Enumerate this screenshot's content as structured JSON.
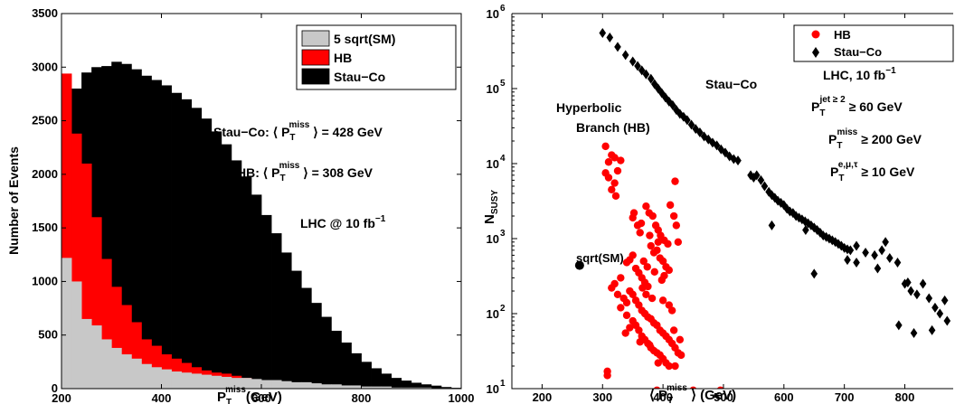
{
  "chart_data": [
    {
      "type": "bar",
      "xlim": [
        200,
        1000
      ],
      "ylim": [
        0,
        3500
      ],
      "xticks": [
        200,
        400,
        600,
        800,
        1000
      ],
      "yticks": [
        0,
        500,
        1000,
        1500,
        2000,
        2500,
        3000,
        3500
      ],
      "xlabel": {
        "main": "P",
        "sub": "T",
        "sup": "miss",
        "rest": "(GeV)"
      },
      "ylabel": "Number of Events",
      "legend": {
        "placement": "top-right",
        "entries": [
          "5 sqrt(SM)",
          "HB",
          "Stau−Co"
        ]
      },
      "annotations": {
        "stau_mean": {
          "pre": "Stau−Co: ⟨ P",
          "sub": "T",
          "sup": "miss",
          "post": " ⟩ = 428 GeV"
        },
        "hb_mean": {
          "pre": "HB: ⟨ P",
          "sub": "T",
          "sup": "miss",
          "post": " ⟩ = 308 GeV"
        },
        "lhc": {
          "pre": "LHC @ 10 fb",
          "sup": "−1"
        }
      },
      "colors": {
        "sm": "#c8c8c8",
        "hb": "#ff0000",
        "stau": "#000000"
      },
      "bin_width": 20,
      "bin_starts": [
        200,
        220,
        240,
        260,
        280,
        300,
        320,
        340,
        360,
        380,
        400,
        420,
        440,
        460,
        480,
        500,
        520,
        540,
        560,
        580,
        600,
        620,
        640,
        660,
        680,
        700,
        720,
        740,
        760,
        780,
        800,
        820,
        840,
        860,
        880,
        900,
        920,
        940,
        960,
        980
      ],
      "series": [
        {
          "name": "Stau−Co",
          "values": [
            2500,
            2800,
            2950,
            3000,
            3010,
            3050,
            3030,
            2980,
            2920,
            2880,
            2830,
            2760,
            2700,
            2620,
            2520,
            2400,
            2280,
            2130,
            1980,
            1810,
            1620,
            1450,
            1270,
            1100,
            940,
            800,
            670,
            540,
            430,
            330,
            250,
            190,
            140,
            100,
            75,
            55,
            40,
            28,
            15,
            8
          ]
        },
        {
          "name": "HB",
          "values": [
            2940,
            2380,
            2100,
            1600,
            1210,
            950,
            780,
            620,
            460,
            400,
            320,
            280,
            240,
            200,
            170,
            150,
            140,
            120,
            100,
            80,
            70,
            60,
            55,
            50,
            45,
            40,
            30,
            25,
            20,
            15,
            10,
            10,
            8,
            6,
            5,
            4,
            3,
            2,
            2,
            1
          ]
        },
        {
          "name": "5 sqrt(SM)",
          "values": [
            1220,
            1000,
            650,
            590,
            460,
            380,
            320,
            280,
            230,
            200,
            180,
            160,
            150,
            140,
            130,
            120,
            110,
            100,
            100,
            90,
            80,
            80,
            70,
            60,
            60,
            50,
            40,
            40,
            30,
            30,
            20,
            20,
            20,
            10,
            10,
            10,
            10,
            5,
            5,
            5
          ]
        }
      ]
    },
    {
      "type": "scatter",
      "xscale": "linear",
      "yscale": "log",
      "xlim": [
        150,
        880
      ],
      "ylim": [
        10,
        1000000
      ],
      "xticks": [
        200,
        300,
        400,
        500,
        600,
        700,
        800
      ],
      "yticks": [
        {
          "value": 10,
          "base": "10",
          "exp": "1"
        },
        {
          "value": 100,
          "base": "10",
          "exp": "2"
        },
        {
          "value": 1000,
          "base": "10",
          "exp": "3"
        },
        {
          "value": 10000,
          "base": "10",
          "exp": "4"
        },
        {
          "value": 100000,
          "base": "10",
          "exp": "5"
        },
        {
          "value": 1000000,
          "base": "10",
          "exp": "6"
        }
      ],
      "xlabel": {
        "pre": "⟨ P",
        "sub": "T",
        "sup": "miss",
        "post": " ⟩  (GeV)"
      },
      "ylabel": {
        "main": "N",
        "sub": "SUSY"
      },
      "legend": {
        "placement": "top-right",
        "entries": [
          "HB",
          "Stau−Co"
        ]
      },
      "annotations": {
        "stau_label": "Stau−Co",
        "hyperbolic": "Hyperbolic",
        "branch": "Branch  (HB)",
        "sm_label": "sqrt(SM)",
        "lhc": {
          "pre": "LHC, 10 fb",
          "sup": "−1"
        },
        "cut1": {
          "main": "P",
          "sub": "T",
          "sup": "jet ≥ 2",
          "post": " ≥  60 GeV"
        },
        "cut2": {
          "main": "P",
          "sub": "T",
          "sup": "miss",
          "post": " ≥  200 GeV"
        },
        "cut3": {
          "main": "P",
          "sub": "T",
          "sup": "e,μ,τ",
          "post": " ≥  10 GeV"
        }
      },
      "colors": {
        "hb": "#ff0000",
        "stau": "#000000",
        "sm": "#000000"
      },
      "sm_point": [
        262,
        440
      ],
      "hb_points": [
        [
          305,
          17000
        ],
        [
          315,
          13000
        ],
        [
          310,
          10500
        ],
        [
          320,
          12000
        ],
        [
          330,
          11000
        ],
        [
          325,
          8000
        ],
        [
          305,
          7500
        ],
        [
          310,
          6500
        ],
        [
          320,
          5500
        ],
        [
          315,
          4500
        ],
        [
          322,
          3700
        ],
        [
          420,
          5800
        ],
        [
          350,
          1900
        ],
        [
          358,
          1500
        ],
        [
          362,
          1200
        ],
        [
          372,
          2700
        ],
        [
          377,
          2200
        ],
        [
          383,
          2000
        ],
        [
          388,
          1500
        ],
        [
          392,
          1300
        ],
        [
          396,
          1100
        ],
        [
          402,
          950
        ],
        [
          408,
          850
        ],
        [
          412,
          2800
        ],
        [
          418,
          2000
        ],
        [
          422,
          1500
        ],
        [
          425,
          900
        ],
        [
          380,
          800
        ],
        [
          385,
          650
        ],
        [
          390,
          700
        ],
        [
          395,
          550
        ],
        [
          400,
          500
        ],
        [
          405,
          420
        ],
        [
          410,
          380
        ],
        [
          350,
          600
        ],
        [
          345,
          520
        ],
        [
          340,
          480
        ],
        [
          355,
          400
        ],
        [
          360,
          350
        ],
        [
          365,
          300
        ],
        [
          370,
          260
        ],
        [
          375,
          230
        ],
        [
          330,
          300
        ],
        [
          320,
          250
        ],
        [
          315,
          220
        ],
        [
          325,
          180
        ],
        [
          335,
          160
        ],
        [
          340,
          140
        ],
        [
          345,
          200
        ],
        [
          350,
          180
        ],
        [
          355,
          150
        ],
        [
          360,
          130
        ],
        [
          365,
          110
        ],
        [
          370,
          100
        ],
        [
          375,
          90
        ],
        [
          380,
          85
        ],
        [
          385,
          75
        ],
        [
          390,
          70
        ],
        [
          395,
          60
        ],
        [
          400,
          55
        ],
        [
          405,
          50
        ],
        [
          410,
          45
        ],
        [
          415,
          40
        ],
        [
          420,
          35
        ],
        [
          425,
          30
        ],
        [
          430,
          28
        ],
        [
          360,
          60
        ],
        [
          365,
          50
        ],
        [
          370,
          45
        ],
        [
          375,
          40
        ],
        [
          380,
          35
        ],
        [
          385,
          32
        ],
        [
          390,
          30
        ],
        [
          395,
          28
        ],
        [
          400,
          25
        ],
        [
          405,
          22
        ],
        [
          410,
          20
        ],
        [
          420,
          20
        ],
        [
          308,
          17
        ],
        [
          308,
          15
        ],
        [
          390,
          9.5
        ],
        [
          450,
          9.5
        ],
        [
          495,
          9.5
        ],
        [
          330,
          120
        ],
        [
          340,
          95
        ],
        [
          350,
          80
        ],
        [
          345,
          65
        ],
        [
          338,
          55
        ],
        [
          355,
          70
        ],
        [
          362,
          42
        ],
        [
          378,
          38
        ],
        [
          392,
          22
        ],
        [
          418,
          60
        ],
        [
          428,
          45
        ],
        [
          400,
          150
        ],
        [
          410,
          130
        ],
        [
          415,
          110
        ],
        [
          382,
          160
        ],
        [
          372,
          180
        ],
        [
          366,
          220
        ],
        [
          398,
          280
        ],
        [
          402,
          320
        ],
        [
          386,
          360
        ],
        [
          374,
          420
        ],
        [
          368,
          500
        ],
        [
          392,
          900
        ],
        [
          378,
          1100
        ],
        [
          364,
          1600
        ],
        [
          352,
          2200
        ]
      ],
      "stau_points": [
        [
          300,
          550000
        ],
        [
          312,
          480000
        ],
        [
          325,
          360000
        ],
        [
          338,
          280000
        ],
        [
          350,
          230000
        ],
        [
          358,
          200000
        ],
        [
          365,
          175000
        ],
        [
          372,
          155000
        ],
        [
          380,
          135000
        ],
        [
          386,
          115000
        ],
        [
          392,
          100000
        ],
        [
          398,
          87000
        ],
        [
          404,
          76000
        ],
        [
          410,
          67000
        ],
        [
          416,
          60000
        ],
        [
          422,
          52000
        ],
        [
          428,
          46000
        ],
        [
          434,
          42000
        ],
        [
          440,
          38000
        ],
        [
          447,
          33000
        ],
        [
          454,
          29000
        ],
        [
          461,
          26000
        ],
        [
          468,
          23000
        ],
        [
          475,
          21000
        ],
        [
          482,
          19000
        ],
        [
          489,
          17500
        ],
        [
          496,
          15500
        ],
        [
          503,
          14000
        ],
        [
          510,
          12500
        ],
        [
          517,
          11500
        ],
        [
          524,
          11000
        ],
        [
          545,
          7000
        ],
        [
          550,
          6500
        ],
        [
          555,
          7000
        ],
        [
          562,
          6000
        ],
        [
          568,
          5000
        ],
        [
          575,
          4200
        ],
        [
          580,
          3800
        ],
        [
          585,
          3500
        ],
        [
          590,
          3200
        ],
        [
          595,
          3000
        ],
        [
          600,
          2800
        ],
        [
          605,
          2500
        ],
        [
          610,
          2300
        ],
        [
          615,
          2200
        ],
        [
          620,
          2000
        ],
        [
          625,
          1900
        ],
        [
          630,
          1800
        ],
        [
          635,
          1700
        ],
        [
          640,
          1600
        ],
        [
          645,
          1500
        ],
        [
          650,
          1400
        ],
        [
          655,
          1300
        ],
        [
          660,
          1200
        ],
        [
          665,
          1100
        ],
        [
          670,
          1050
        ],
        [
          675,
          1000
        ],
        [
          680,
          950
        ],
        [
          685,
          900
        ],
        [
          690,
          850
        ],
        [
          695,
          800
        ],
        [
          700,
          750
        ],
        [
          705,
          720
        ],
        [
          710,
          700
        ],
        [
          720,
          800
        ],
        [
          735,
          650
        ],
        [
          750,
          600
        ],
        [
          762,
          700
        ],
        [
          775,
          550
        ],
        [
          788,
          480
        ],
        [
          800,
          250
        ],
        [
          805,
          260
        ],
        [
          810,
          200
        ],
        [
          820,
          180
        ],
        [
          830,
          250
        ],
        [
          840,
          160
        ],
        [
          850,
          120
        ],
        [
          858,
          100
        ],
        [
          866,
          150
        ],
        [
          845,
          60
        ],
        [
          815,
          55
        ],
        [
          790,
          70
        ],
        [
          870,
          80
        ],
        [
          768,
          900
        ],
        [
          636,
          1300
        ],
        [
          580,
          1500
        ],
        [
          650,
          340
        ],
        [
          755,
          400
        ],
        [
          720,
          480
        ],
        [
          705,
          520
        ]
      ]
    }
  ]
}
